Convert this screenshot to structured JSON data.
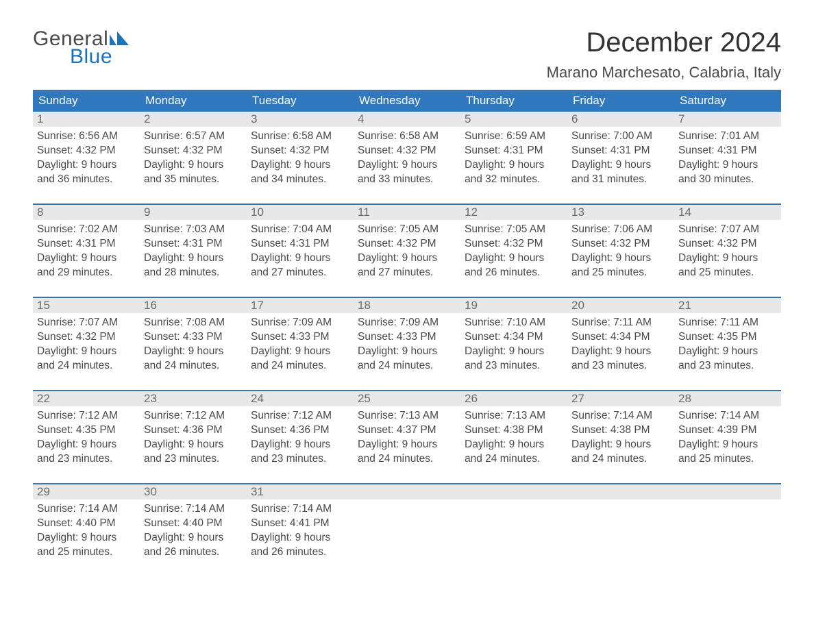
{
  "logo": {
    "text_top": "General",
    "text_bottom": "Blue"
  },
  "colors": {
    "header_bg": "#2f78bd",
    "header_text": "#ffffff",
    "daynum_bg": "#e8e8e8",
    "week_border": "#2f78bd",
    "body_text": "#4a4a4a",
    "title_text": "#323232",
    "logo_blue": "#1d72b8",
    "background": "#ffffff"
  },
  "typography": {
    "title_fontsize": 40,
    "location_fontsize": 22,
    "dayheader_fontsize": 17,
    "daynum_fontsize": 17,
    "body_fontsize": 15.5,
    "logo_fontsize": 30
  },
  "title": "December 2024",
  "location": "Marano Marchesato, Calabria, Italy",
  "day_headers": [
    "Sunday",
    "Monday",
    "Tuesday",
    "Wednesday",
    "Thursday",
    "Friday",
    "Saturday"
  ],
  "layout": {
    "columns": 7,
    "rows": 5,
    "first_day_column": 0
  },
  "days": [
    {
      "n": "1",
      "sunrise": "Sunrise: 6:56 AM",
      "sunset": "Sunset: 4:32 PM",
      "dl1": "Daylight: 9 hours",
      "dl2": "and 36 minutes."
    },
    {
      "n": "2",
      "sunrise": "Sunrise: 6:57 AM",
      "sunset": "Sunset: 4:32 PM",
      "dl1": "Daylight: 9 hours",
      "dl2": "and 35 minutes."
    },
    {
      "n": "3",
      "sunrise": "Sunrise: 6:58 AM",
      "sunset": "Sunset: 4:32 PM",
      "dl1": "Daylight: 9 hours",
      "dl2": "and 34 minutes."
    },
    {
      "n": "4",
      "sunrise": "Sunrise: 6:58 AM",
      "sunset": "Sunset: 4:32 PM",
      "dl1": "Daylight: 9 hours",
      "dl2": "and 33 minutes."
    },
    {
      "n": "5",
      "sunrise": "Sunrise: 6:59 AM",
      "sunset": "Sunset: 4:31 PM",
      "dl1": "Daylight: 9 hours",
      "dl2": "and 32 minutes."
    },
    {
      "n": "6",
      "sunrise": "Sunrise: 7:00 AM",
      "sunset": "Sunset: 4:31 PM",
      "dl1": "Daylight: 9 hours",
      "dl2": "and 31 minutes."
    },
    {
      "n": "7",
      "sunrise": "Sunrise: 7:01 AM",
      "sunset": "Sunset: 4:31 PM",
      "dl1": "Daylight: 9 hours",
      "dl2": "and 30 minutes."
    },
    {
      "n": "8",
      "sunrise": "Sunrise: 7:02 AM",
      "sunset": "Sunset: 4:31 PM",
      "dl1": "Daylight: 9 hours",
      "dl2": "and 29 minutes."
    },
    {
      "n": "9",
      "sunrise": "Sunrise: 7:03 AM",
      "sunset": "Sunset: 4:31 PM",
      "dl1": "Daylight: 9 hours",
      "dl2": "and 28 minutes."
    },
    {
      "n": "10",
      "sunrise": "Sunrise: 7:04 AM",
      "sunset": "Sunset: 4:31 PM",
      "dl1": "Daylight: 9 hours",
      "dl2": "and 27 minutes."
    },
    {
      "n": "11",
      "sunrise": "Sunrise: 7:05 AM",
      "sunset": "Sunset: 4:32 PM",
      "dl1": "Daylight: 9 hours",
      "dl2": "and 27 minutes."
    },
    {
      "n": "12",
      "sunrise": "Sunrise: 7:05 AM",
      "sunset": "Sunset: 4:32 PM",
      "dl1": "Daylight: 9 hours",
      "dl2": "and 26 minutes."
    },
    {
      "n": "13",
      "sunrise": "Sunrise: 7:06 AM",
      "sunset": "Sunset: 4:32 PM",
      "dl1": "Daylight: 9 hours",
      "dl2": "and 25 minutes."
    },
    {
      "n": "14",
      "sunrise": "Sunrise: 7:07 AM",
      "sunset": "Sunset: 4:32 PM",
      "dl1": "Daylight: 9 hours",
      "dl2": "and 25 minutes."
    },
    {
      "n": "15",
      "sunrise": "Sunrise: 7:07 AM",
      "sunset": "Sunset: 4:32 PM",
      "dl1": "Daylight: 9 hours",
      "dl2": "and 24 minutes."
    },
    {
      "n": "16",
      "sunrise": "Sunrise: 7:08 AM",
      "sunset": "Sunset: 4:33 PM",
      "dl1": "Daylight: 9 hours",
      "dl2": "and 24 minutes."
    },
    {
      "n": "17",
      "sunrise": "Sunrise: 7:09 AM",
      "sunset": "Sunset: 4:33 PM",
      "dl1": "Daylight: 9 hours",
      "dl2": "and 24 minutes."
    },
    {
      "n": "18",
      "sunrise": "Sunrise: 7:09 AM",
      "sunset": "Sunset: 4:33 PM",
      "dl1": "Daylight: 9 hours",
      "dl2": "and 24 minutes."
    },
    {
      "n": "19",
      "sunrise": "Sunrise: 7:10 AM",
      "sunset": "Sunset: 4:34 PM",
      "dl1": "Daylight: 9 hours",
      "dl2": "and 23 minutes."
    },
    {
      "n": "20",
      "sunrise": "Sunrise: 7:11 AM",
      "sunset": "Sunset: 4:34 PM",
      "dl1": "Daylight: 9 hours",
      "dl2": "and 23 minutes."
    },
    {
      "n": "21",
      "sunrise": "Sunrise: 7:11 AM",
      "sunset": "Sunset: 4:35 PM",
      "dl1": "Daylight: 9 hours",
      "dl2": "and 23 minutes."
    },
    {
      "n": "22",
      "sunrise": "Sunrise: 7:12 AM",
      "sunset": "Sunset: 4:35 PM",
      "dl1": "Daylight: 9 hours",
      "dl2": "and 23 minutes."
    },
    {
      "n": "23",
      "sunrise": "Sunrise: 7:12 AM",
      "sunset": "Sunset: 4:36 PM",
      "dl1": "Daylight: 9 hours",
      "dl2": "and 23 minutes."
    },
    {
      "n": "24",
      "sunrise": "Sunrise: 7:12 AM",
      "sunset": "Sunset: 4:36 PM",
      "dl1": "Daylight: 9 hours",
      "dl2": "and 23 minutes."
    },
    {
      "n": "25",
      "sunrise": "Sunrise: 7:13 AM",
      "sunset": "Sunset: 4:37 PM",
      "dl1": "Daylight: 9 hours",
      "dl2": "and 24 minutes."
    },
    {
      "n": "26",
      "sunrise": "Sunrise: 7:13 AM",
      "sunset": "Sunset: 4:38 PM",
      "dl1": "Daylight: 9 hours",
      "dl2": "and 24 minutes."
    },
    {
      "n": "27",
      "sunrise": "Sunrise: 7:14 AM",
      "sunset": "Sunset: 4:38 PM",
      "dl1": "Daylight: 9 hours",
      "dl2": "and 24 minutes."
    },
    {
      "n": "28",
      "sunrise": "Sunrise: 7:14 AM",
      "sunset": "Sunset: 4:39 PM",
      "dl1": "Daylight: 9 hours",
      "dl2": "and 25 minutes."
    },
    {
      "n": "29",
      "sunrise": "Sunrise: 7:14 AM",
      "sunset": "Sunset: 4:40 PM",
      "dl1": "Daylight: 9 hours",
      "dl2": "and 25 minutes."
    },
    {
      "n": "30",
      "sunrise": "Sunrise: 7:14 AM",
      "sunset": "Sunset: 4:40 PM",
      "dl1": "Daylight: 9 hours",
      "dl2": "and 26 minutes."
    },
    {
      "n": "31",
      "sunrise": "Sunrise: 7:14 AM",
      "sunset": "Sunset: 4:41 PM",
      "dl1": "Daylight: 9 hours",
      "dl2": "and 26 minutes."
    }
  ]
}
